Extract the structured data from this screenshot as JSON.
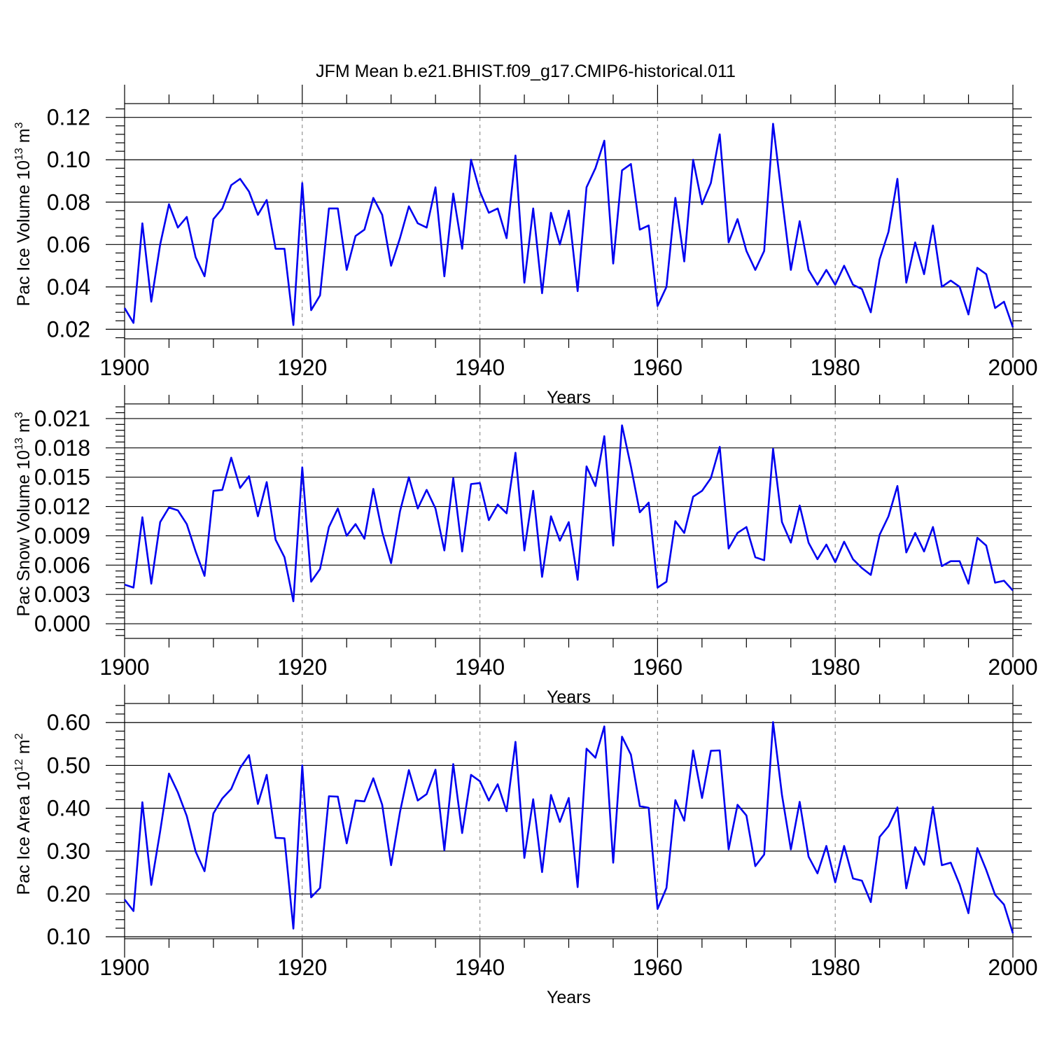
{
  "title": "JFM Mean b.e21.BHIST.f09_g17.CMIP6-historical.011",
  "series_color": "#0000f0",
  "chart_data": [
    {
      "type": "line",
      "name": "Pac Ice Volume",
      "ylabel": "Pac Ice Volume 10",
      "ylabel_exp": "13",
      "ylabel_unit": " m",
      "ylabel_unit_exp": "3",
      "xlabel": "Years",
      "xlim": [
        1900,
        2000
      ],
      "ylim": [
        0.0155,
        0.1265
      ],
      "xticks": [
        "1900",
        "1920",
        "1940",
        "1960",
        "1980",
        "2000"
      ],
      "yticks": [
        "0.02",
        "0.04",
        "0.06",
        "0.08",
        "0.10",
        "0.12"
      ],
      "grid": "dashed vertical every 20 years",
      "x_start": 1900,
      "values": [
        0.03,
        0.023,
        0.07,
        0.033,
        0.06,
        0.079,
        0.068,
        0.073,
        0.054,
        0.045,
        0.072,
        0.077,
        0.088,
        0.091,
        0.085,
        0.074,
        0.081,
        0.058,
        0.058,
        0.022,
        0.089,
        0.029,
        0.036,
        0.077,
        0.077,
        0.048,
        0.064,
        0.067,
        0.082,
        0.074,
        0.05,
        0.063,
        0.078,
        0.07,
        0.068,
        0.087,
        0.045,
        0.084,
        0.058,
        0.1,
        0.085,
        0.075,
        0.077,
        0.063,
        0.102,
        0.042,
        0.077,
        0.037,
        0.075,
        0.06,
        0.076,
        0.038,
        0.087,
        0.096,
        0.109,
        0.051,
        0.095,
        0.098,
        0.067,
        0.069,
        0.031,
        0.04,
        0.082,
        0.052,
        0.1,
        0.079,
        0.089,
        0.112,
        0.061,
        0.072,
        0.057,
        0.048,
        0.057,
        0.117,
        0.082,
        0.048,
        0.071,
        0.048,
        0.041,
        0.048,
        0.041,
        0.05,
        0.041,
        0.039,
        0.028,
        0.053,
        0.066,
        0.091,
        0.042,
        0.061,
        0.046,
        0.069,
        0.04,
        0.043,
        0.04,
        0.027,
        0.049,
        0.046,
        0.03,
        0.033,
        0.021
      ]
    },
    {
      "type": "line",
      "name": "Pac Snow Volume",
      "ylabel": "Pac Snow Volume 10",
      "ylabel_exp": "13",
      "ylabel_unit": " m",
      "ylabel_unit_exp": "3",
      "xlabel": "Years",
      "xlim": [
        1900,
        2000
      ],
      "ylim": [
        -0.0015,
        0.0225
      ],
      "xticks": [
        "1900",
        "1920",
        "1940",
        "1960",
        "1980",
        "2000"
      ],
      "yticks": [
        "0.000",
        "0.003",
        "0.006",
        "0.009",
        "0.012",
        "0.015",
        "0.018",
        "0.021"
      ],
      "grid": "dashed vertical every 20 years",
      "x_start": 1900,
      "values": [
        0.004,
        0.0037,
        0.0109,
        0.0041,
        0.0104,
        0.0119,
        0.0116,
        0.0102,
        0.0074,
        0.0049,
        0.0136,
        0.0137,
        0.017,
        0.0139,
        0.0151,
        0.011,
        0.0145,
        0.0086,
        0.0068,
        0.0023,
        0.016,
        0.0043,
        0.0056,
        0.0099,
        0.0118,
        0.009,
        0.0102,
        0.0087,
        0.0138,
        0.0094,
        0.0062,
        0.0115,
        0.015,
        0.0118,
        0.0137,
        0.0118,
        0.0075,
        0.0149,
        0.0074,
        0.0143,
        0.0144,
        0.0106,
        0.0122,
        0.0113,
        0.0175,
        0.0075,
        0.0136,
        0.0048,
        0.011,
        0.0085,
        0.0104,
        0.0045,
        0.0161,
        0.0141,
        0.0192,
        0.008,
        0.0203,
        0.0161,
        0.0114,
        0.0124,
        0.0037,
        0.0043,
        0.0105,
        0.0093,
        0.013,
        0.0136,
        0.0149,
        0.0181,
        0.0077,
        0.0093,
        0.0099,
        0.0068,
        0.0065,
        0.0179,
        0.0104,
        0.0083,
        0.0121,
        0.0083,
        0.0066,
        0.0081,
        0.0063,
        0.0084,
        0.0066,
        0.0057,
        0.005,
        0.0091,
        0.011,
        0.0141,
        0.0073,
        0.0093,
        0.0074,
        0.0099,
        0.0059,
        0.0064,
        0.0064,
        0.0041,
        0.0088,
        0.008,
        0.0042,
        0.0044,
        0.0034
      ]
    },
    {
      "type": "line",
      "name": "Pac Ice Area",
      "ylabel": "Pac Ice Area 10",
      "ylabel_exp": "12",
      "ylabel_unit": " m",
      "ylabel_unit_exp": "2",
      "xlabel": "Years",
      "xlim": [
        1900,
        2000
      ],
      "ylim": [
        0.0955,
        0.6445
      ],
      "xticks": [
        "1900",
        "1920",
        "1940",
        "1960",
        "1980",
        "2000"
      ],
      "yticks": [
        "0.10",
        "0.20",
        "0.30",
        "0.40",
        "0.50",
        "0.60"
      ],
      "grid": "dashed vertical every 20 years",
      "x_start": 1900,
      "values": [
        0.187,
        0.16,
        0.414,
        0.221,
        0.346,
        0.481,
        0.437,
        0.382,
        0.299,
        0.253,
        0.388,
        0.423,
        0.445,
        0.494,
        0.524,
        0.41,
        0.478,
        0.331,
        0.33,
        0.119,
        0.5,
        0.192,
        0.214,
        0.428,
        0.427,
        0.318,
        0.418,
        0.416,
        0.47,
        0.408,
        0.267,
        0.391,
        0.489,
        0.418,
        0.433,
        0.49,
        0.302,
        0.503,
        0.342,
        0.478,
        0.463,
        0.418,
        0.456,
        0.393,
        0.555,
        0.284,
        0.421,
        0.251,
        0.431,
        0.368,
        0.424,
        0.216,
        0.539,
        0.518,
        0.591,
        0.273,
        0.567,
        0.525,
        0.405,
        0.401,
        0.165,
        0.214,
        0.419,
        0.371,
        0.535,
        0.424,
        0.534,
        0.535,
        0.304,
        0.408,
        0.383,
        0.265,
        0.292,
        0.601,
        0.431,
        0.304,
        0.415,
        0.287,
        0.248,
        0.312,
        0.227,
        0.312,
        0.236,
        0.231,
        0.181,
        0.333,
        0.358,
        0.402,
        0.213,
        0.309,
        0.268,
        0.403,
        0.267,
        0.273,
        0.222,
        0.155,
        0.307,
        0.256,
        0.198,
        0.175,
        0.108
      ]
    }
  ]
}
